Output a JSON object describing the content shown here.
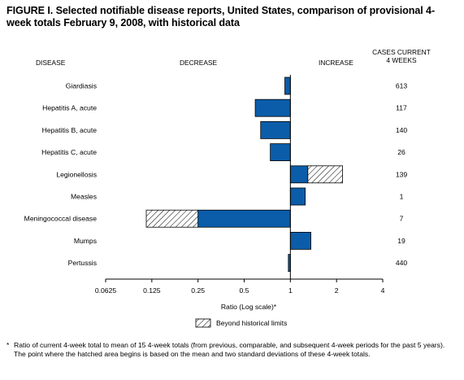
{
  "title": "FIGURE I. Selected notifiable disease reports, United States, comparison of provisional 4-week totals February 9, 2008, with historical data",
  "headers": {
    "disease": "DISEASE",
    "decrease": "DECREASE",
    "increase": "INCREASE",
    "cases_line1": "CASES CURRENT",
    "cases_line2": "4 WEEKS"
  },
  "footnote": {
    "star": "*",
    "text": "Ratio of current 4-week total to mean of 15 4-week totals (from previous, comparable, and subsequent 4-week periods for the past 5 years). The point where the hatched area begins is based on the mean and two standard deviations of these 4-week totals."
  },
  "colors": {
    "bar_fill": "#0b5da9",
    "hatch": "#000000",
    "axis": "#000000"
  },
  "chart_data": {
    "type": "bar",
    "orientation": "horizontal",
    "xscale": "log2",
    "xlabel": "Ratio (Log scale)*",
    "xlim": [
      0.0625,
      4
    ],
    "xticks": [
      0.0625,
      0.125,
      0.25,
      0.5,
      1,
      2,
      4
    ],
    "xtick_labels": [
      "0.0625",
      "0.125",
      "0.25",
      "0.5",
      "1",
      "2",
      "4"
    ],
    "reference_line": 1,
    "legend": {
      "label": "Beyond historical limits",
      "position": "bottom"
    },
    "categories": [
      "Giardiasis",
      "Hepatitis A, acute",
      "Hepatitis B, acute",
      "Hepatitis C, acute",
      "Legionellosis",
      "Measles",
      "Meningococcal disease",
      "Mumps",
      "Pertussis"
    ],
    "ratios": [
      0.92,
      0.59,
      0.64,
      0.74,
      2.19,
      1.25,
      0.115,
      1.36,
      0.97
    ],
    "hatch_start": [
      null,
      null,
      null,
      null,
      1.3,
      null,
      0.25,
      null,
      null
    ],
    "cases_current_4_weeks": [
      "613",
      "117",
      "140",
      "26",
      "139",
      "1",
      "7",
      "19",
      "440"
    ]
  }
}
